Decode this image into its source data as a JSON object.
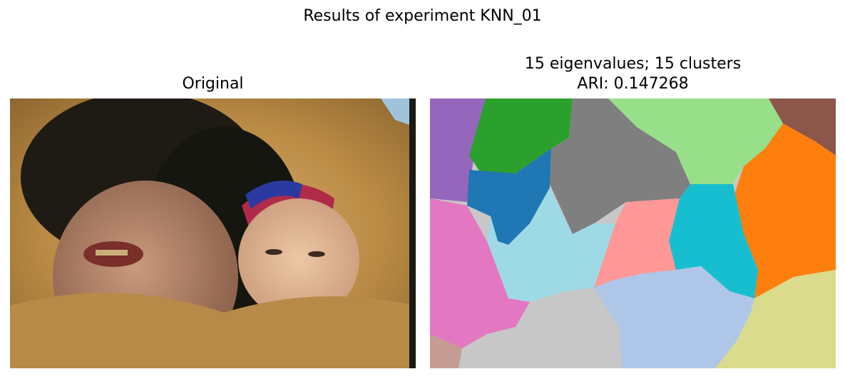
{
  "figure": {
    "suptitle": "Results of experiment KNN_01"
  },
  "panels": [
    {
      "title": "Original"
    },
    {
      "title_line1": "15 eigenvalues; 15 clusters",
      "title_line2": "ARI: 0.147268"
    }
  ],
  "segmentation": {
    "eigenvalues": 15,
    "clusters": 15,
    "ari": 0.147268,
    "cluster_colors": [
      "#1f77b4",
      "#ff7f0e",
      "#2ca02c",
      "#98df8a",
      "#ff9896",
      "#9467bd",
      "#8c564b",
      "#c49c94",
      "#e377c2",
      "#7f7f7f",
      "#c7c7c7",
      "#dbdb8d",
      "#17becf",
      "#9edae5",
      "#aec7e8"
    ]
  }
}
